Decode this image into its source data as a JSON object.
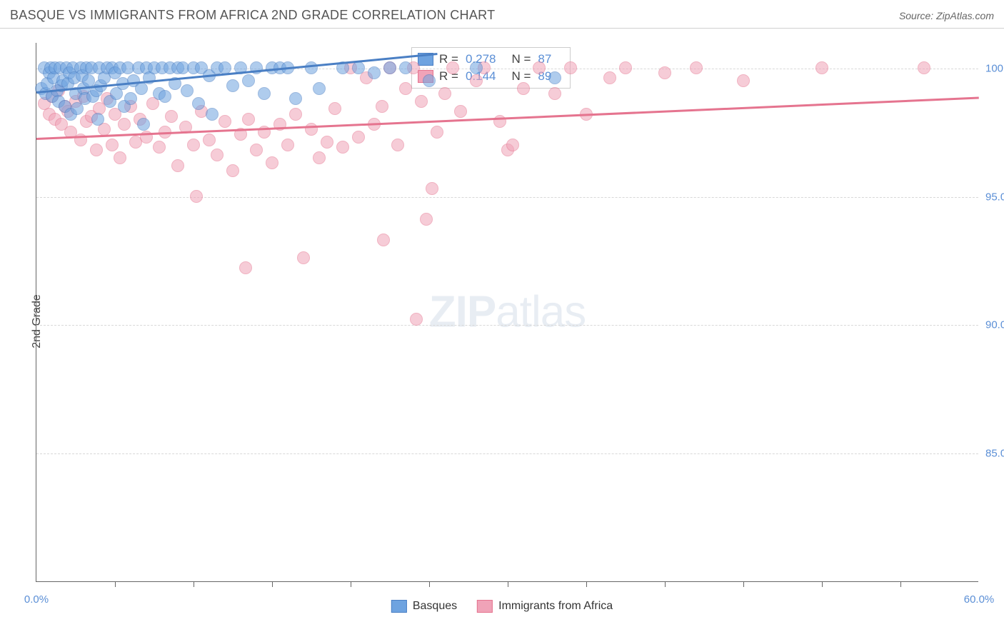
{
  "header": {
    "title": "BASQUE VS IMMIGRANTS FROM AFRICA 2ND GRADE CORRELATION CHART",
    "source": "Source: ZipAtlas.com"
  },
  "ylabel": "2nd Grade",
  "watermark": {
    "prefix": "ZIP",
    "suffix": "atlas"
  },
  "chart": {
    "type": "scatter",
    "xlim": [
      0,
      60
    ],
    "ylim": [
      80,
      101
    ],
    "yticks": [
      {
        "v": 85,
        "label": "85.0%"
      },
      {
        "v": 90,
        "label": "90.0%"
      },
      {
        "v": 95,
        "label": "95.0%"
      },
      {
        "v": 100,
        "label": "100.0%"
      }
    ],
    "xticks_minor": [
      5,
      10,
      15,
      20,
      25,
      30,
      35,
      40,
      45,
      50,
      55
    ],
    "xticks_label": [
      {
        "v": 0,
        "label": "0.0%"
      },
      {
        "v": 60,
        "label": "60.0%"
      }
    ],
    "background_color": "#ffffff",
    "grid_color": "#d8d8d8",
    "text_color": "#5b8fd6",
    "marker_size": 18,
    "marker_opacity": 0.55,
    "series_a": {
      "name": "Basques",
      "fill_color": "#6ea3e0",
      "stroke_color": "#4a7fc4",
      "trend": {
        "x1": 0,
        "y1": 99.1,
        "x2": 25.5,
        "y2": 100.6
      },
      "stats": {
        "R": "0.278",
        "N": "87"
      },
      "points": [
        [
          0.3,
          99.2
        ],
        [
          0.5,
          100.0
        ],
        [
          0.6,
          99.0
        ],
        [
          0.7,
          99.4
        ],
        [
          0.8,
          99.8
        ],
        [
          0.9,
          100.0
        ],
        [
          1.0,
          98.9
        ],
        [
          1.1,
          99.6
        ],
        [
          1.2,
          100.0
        ],
        [
          1.3,
          99.1
        ],
        [
          1.4,
          98.7
        ],
        [
          1.5,
          100.0
        ],
        [
          1.6,
          99.3
        ],
        [
          1.7,
          99.5
        ],
        [
          1.8,
          98.5
        ],
        [
          1.9,
          100.0
        ],
        [
          2.0,
          99.4
        ],
        [
          2.1,
          99.8
        ],
        [
          2.2,
          98.2
        ],
        [
          2.3,
          100.0
        ],
        [
          2.4,
          99.6
        ],
        [
          2.5,
          99.0
        ],
        [
          2.6,
          98.4
        ],
        [
          2.8,
          100.0
        ],
        [
          2.9,
          99.7
        ],
        [
          3.0,
          99.2
        ],
        [
          3.1,
          98.8
        ],
        [
          3.2,
          100.0
        ],
        [
          3.3,
          99.5
        ],
        [
          3.5,
          100.0
        ],
        [
          3.6,
          98.9
        ],
        [
          3.8,
          99.1
        ],
        [
          3.9,
          98.0
        ],
        [
          4.0,
          100.0
        ],
        [
          4.1,
          99.3
        ],
        [
          4.3,
          99.6
        ],
        [
          4.5,
          100.0
        ],
        [
          4.7,
          98.7
        ],
        [
          4.8,
          100.0
        ],
        [
          5.0,
          99.8
        ],
        [
          5.1,
          99.0
        ],
        [
          5.3,
          100.0
        ],
        [
          5.5,
          99.4
        ],
        [
          5.6,
          98.5
        ],
        [
          5.8,
          100.0
        ],
        [
          6.0,
          98.8
        ],
        [
          6.2,
          99.5
        ],
        [
          6.5,
          100.0
        ],
        [
          6.7,
          99.2
        ],
        [
          6.8,
          97.8
        ],
        [
          7.0,
          100.0
        ],
        [
          7.2,
          99.6
        ],
        [
          7.5,
          100.0
        ],
        [
          7.8,
          99.0
        ],
        [
          8.0,
          100.0
        ],
        [
          8.2,
          98.9
        ],
        [
          8.5,
          100.0
        ],
        [
          8.8,
          99.4
        ],
        [
          9.0,
          100.0
        ],
        [
          9.3,
          100.0
        ],
        [
          9.6,
          99.1
        ],
        [
          10.0,
          100.0
        ],
        [
          10.3,
          98.6
        ],
        [
          10.5,
          100.0
        ],
        [
          11.0,
          99.7
        ],
        [
          11.2,
          98.2
        ],
        [
          11.5,
          100.0
        ],
        [
          12.0,
          100.0
        ],
        [
          12.5,
          99.3
        ],
        [
          13.0,
          100.0
        ],
        [
          13.5,
          99.5
        ],
        [
          14.0,
          100.0
        ],
        [
          14.5,
          99.0
        ],
        [
          15.0,
          100.0
        ],
        [
          15.5,
          100.0
        ],
        [
          16.0,
          100.0
        ],
        [
          16.5,
          98.8
        ],
        [
          17.5,
          100.0
        ],
        [
          18.0,
          99.2
        ],
        [
          19.5,
          100.0
        ],
        [
          20.5,
          100.0
        ],
        [
          21.5,
          99.8
        ],
        [
          22.5,
          100.0
        ],
        [
          23.5,
          100.0
        ],
        [
          25.0,
          99.5
        ],
        [
          28.0,
          100.0
        ],
        [
          33.0,
          99.6
        ]
      ]
    },
    "series_b": {
      "name": "Immigrants from Africa",
      "fill_color": "#f0a3b8",
      "stroke_color": "#e5748f",
      "trend": {
        "x1": 0,
        "y1": 97.3,
        "x2": 60,
        "y2": 98.9
      },
      "stats": {
        "R": "0.144",
        "N": "89"
      },
      "points": [
        [
          0.5,
          98.6
        ],
        [
          0.8,
          98.2
        ],
        [
          1.0,
          98.9
        ],
        [
          1.2,
          98.0
        ],
        [
          1.4,
          99.1
        ],
        [
          1.6,
          97.8
        ],
        [
          1.8,
          98.5
        ],
        [
          2.0,
          98.3
        ],
        [
          2.2,
          97.5
        ],
        [
          2.5,
          98.7
        ],
        [
          2.8,
          97.2
        ],
        [
          3.0,
          98.9
        ],
        [
          3.2,
          97.9
        ],
        [
          3.5,
          98.1
        ],
        [
          3.8,
          96.8
        ],
        [
          4.0,
          98.4
        ],
        [
          4.3,
          97.6
        ],
        [
          4.5,
          98.8
        ],
        [
          4.8,
          97.0
        ],
        [
          5.0,
          98.2
        ],
        [
          5.3,
          96.5
        ],
        [
          5.6,
          97.8
        ],
        [
          6.0,
          98.5
        ],
        [
          6.3,
          97.1
        ],
        [
          6.6,
          98.0
        ],
        [
          7.0,
          97.3
        ],
        [
          7.4,
          98.6
        ],
        [
          7.8,
          96.9
        ],
        [
          8.2,
          97.5
        ],
        [
          8.6,
          98.1
        ],
        [
          9.0,
          96.2
        ],
        [
          9.5,
          97.7
        ],
        [
          10.0,
          97.0
        ],
        [
          10.2,
          95.0
        ],
        [
          10.5,
          98.3
        ],
        [
          11.0,
          97.2
        ],
        [
          11.5,
          96.6
        ],
        [
          12.0,
          97.9
        ],
        [
          12.5,
          96.0
        ],
        [
          13.0,
          97.4
        ],
        [
          13.3,
          92.2
        ],
        [
          13.5,
          98.0
        ],
        [
          14.0,
          96.8
        ],
        [
          14.5,
          97.5
        ],
        [
          15.0,
          96.3
        ],
        [
          15.5,
          97.8
        ],
        [
          16.0,
          97.0
        ],
        [
          16.5,
          98.2
        ],
        [
          17.0,
          92.6
        ],
        [
          17.5,
          97.6
        ],
        [
          18.0,
          96.5
        ],
        [
          18.5,
          97.1
        ],
        [
          19.0,
          98.4
        ],
        [
          19.5,
          96.9
        ],
        [
          20.0,
          100.0
        ],
        [
          20.5,
          97.3
        ],
        [
          21.0,
          99.6
        ],
        [
          21.5,
          97.8
        ],
        [
          22.0,
          98.5
        ],
        [
          22.1,
          93.3
        ],
        [
          22.5,
          100.0
        ],
        [
          23.0,
          97.0
        ],
        [
          23.5,
          99.2
        ],
        [
          24.0,
          100.0
        ],
        [
          24.2,
          90.2
        ],
        [
          24.5,
          98.7
        ],
        [
          24.8,
          94.1
        ],
        [
          25.2,
          95.3
        ],
        [
          25.5,
          97.5
        ],
        [
          26.0,
          99.0
        ],
        [
          26.5,
          100.0
        ],
        [
          27.0,
          98.3
        ],
        [
          28.0,
          99.5
        ],
        [
          28.5,
          100.0
        ],
        [
          29.5,
          97.9
        ],
        [
          30.0,
          96.8
        ],
        [
          30.3,
          97.0
        ],
        [
          31.0,
          99.2
        ],
        [
          32.0,
          100.0
        ],
        [
          33.0,
          99.0
        ],
        [
          34.0,
          100.0
        ],
        [
          35.0,
          98.2
        ],
        [
          36.5,
          99.6
        ],
        [
          37.5,
          100.0
        ],
        [
          40.0,
          99.8
        ],
        [
          42.0,
          100.0
        ],
        [
          45.0,
          99.5
        ],
        [
          50.0,
          100.0
        ],
        [
          56.5,
          100.0
        ]
      ]
    }
  },
  "legend_box": {
    "r_label": "R =",
    "n_label": "N ="
  },
  "bottom_legend": {
    "a": "Basques",
    "b": "Immigrants from Africa"
  }
}
